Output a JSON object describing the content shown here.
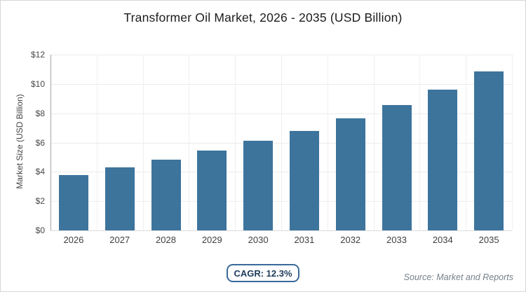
{
  "title": "Transformer Oil Market, 2026 - 2035 (USD Billion)",
  "chart_data": {
    "type": "bar",
    "title": "Transformer Oil Market, 2026 - 2035 (USD Billion)",
    "categories": [
      "2026",
      "2027",
      "2028",
      "2029",
      "2030",
      "2031",
      "2032",
      "2033",
      "2034",
      "2035"
    ],
    "values": [
      3.8,
      4.3,
      4.85,
      5.45,
      6.1,
      6.8,
      7.65,
      8.55,
      9.6,
      10.85
    ],
    "xlabel": "",
    "ylabel": "Market Size (USD Billion)",
    "ylim": [
      0,
      12
    ],
    "ytick_step": 2,
    "ytick_labels": [
      "$0",
      "$2",
      "$4",
      "$6",
      "$8",
      "$10",
      "$12"
    ],
    "grid": true,
    "legend_position": "none",
    "bar_color": "#3d749c"
  },
  "footer": {
    "cagr_label": "CAGR: 12.3%",
    "source": "Source: Market and Reports"
  },
  "colors": {
    "bar": "#3d749c",
    "badge_border": "#38699b",
    "badge_text": "#1e3c59",
    "gridline": "#ececec",
    "axis_line": "#a6a6a6",
    "title_text": "#1c1c1c",
    "tick_text": "#3f3f3f",
    "source_text": "#75808a",
    "card_border": "#d6d6d6",
    "background": "#ffffff"
  }
}
